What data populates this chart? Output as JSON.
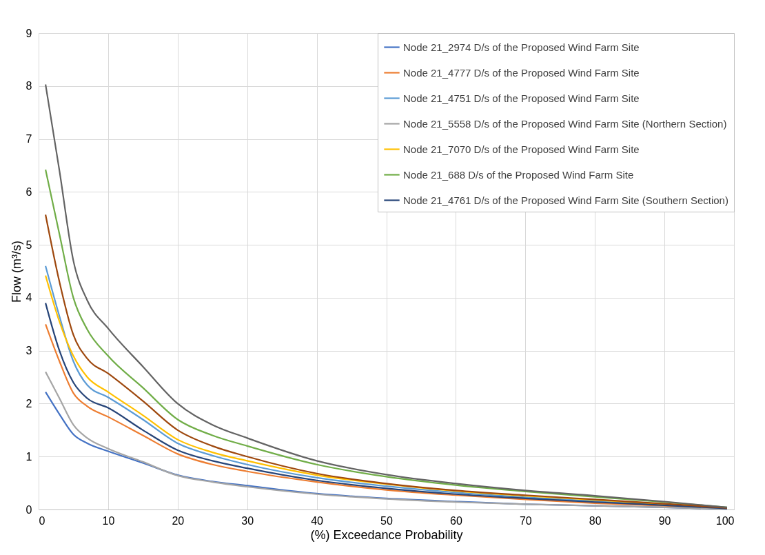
{
  "chart_data": {
    "type": "line",
    "xlabel": "(%) Exceedance Probability",
    "ylabel": "Flow (m³/s)",
    "x": [
      1,
      3,
      5,
      7,
      10,
      15,
      20,
      25,
      30,
      40,
      50,
      60,
      70,
      80,
      90,
      99
    ],
    "xlim": [
      0,
      100
    ],
    "xticks": [
      0,
      10,
      20,
      30,
      40,
      50,
      60,
      70,
      80,
      90,
      100
    ],
    "ylim": [
      0,
      9
    ],
    "yticks": [
      0,
      1,
      2,
      3,
      4,
      5,
      6,
      7,
      8,
      9
    ],
    "grid": true,
    "legend": "top right",
    "marker": "none",
    "line_style": "solid",
    "series": [
      {
        "name": "Node 21_2974 D/s of the Proposed Wind Farm Site",
        "color": "#4472c4",
        "values": [
          2.22,
          1.8,
          1.42,
          1.25,
          1.1,
          0.88,
          0.65,
          0.53,
          0.45,
          0.3,
          0.21,
          0.15,
          0.1,
          0.07,
          0.04,
          0.01
        ]
      },
      {
        "name": "Node 21_4777 D/s of the Proposed Wind Farm Site",
        "color": "#ed7d31",
        "values": [
          3.5,
          2.8,
          2.2,
          1.95,
          1.75,
          1.4,
          1.05,
          0.85,
          0.72,
          0.52,
          0.37,
          0.27,
          0.19,
          0.12,
          0.07,
          0.02
        ]
      },
      {
        "name": "Node 21_4751 D/s of the Proposed Wind Farm Site",
        "color": "#5b9bd5",
        "values": [
          4.6,
          3.65,
          2.8,
          2.35,
          2.12,
          1.7,
          1.25,
          1.02,
          0.85,
          0.6,
          0.44,
          0.32,
          0.23,
          0.16,
          0.09,
          0.03
        ]
      },
      {
        "name": "Node 21_5558 D/s of the Proposed Wind Farm Site (Northern Section)",
        "color": "#a5a5a5",
        "values": [
          2.6,
          2.1,
          1.6,
          1.35,
          1.15,
          0.9,
          0.64,
          0.52,
          0.43,
          0.29,
          0.2,
          0.14,
          0.1,
          0.07,
          0.04,
          0.01
        ]
      },
      {
        "name": "Node 21_7070 D/s of the Proposed Wind Farm Site",
        "color": "#ffc000",
        "values": [
          4.42,
          3.55,
          2.9,
          2.5,
          2.22,
          1.78,
          1.32,
          1.08,
          0.92,
          0.65,
          0.48,
          0.35,
          0.26,
          0.18,
          0.1,
          0.03
        ]
      },
      {
        "name": "Node 21_688 D/s of the Proposed Wind Farm Site",
        "color": "#70ad47",
        "values": [
          6.42,
          5.2,
          4.0,
          3.4,
          2.9,
          2.3,
          1.7,
          1.4,
          1.2,
          0.85,
          0.62,
          0.46,
          0.34,
          0.24,
          0.14,
          0.04
        ]
      },
      {
        "name": "Node 21_4761 D/s of the Proposed Wind Farm Site (Southern Section)",
        "color": "#264478",
        "values": [
          3.9,
          3.0,
          2.4,
          2.1,
          1.92,
          1.5,
          1.12,
          0.92,
          0.78,
          0.55,
          0.4,
          0.29,
          0.21,
          0.14,
          0.08,
          0.02
        ]
      },
      {
        "color": "#9e480e",
        "values": [
          5.57,
          4.3,
          3.3,
          2.85,
          2.57,
          2.05,
          1.5,
          1.2,
          1.0,
          0.68,
          0.49,
          0.36,
          0.27,
          0.19,
          0.11,
          0.03
        ]
      },
      {
        "color": "#636363",
        "values": [
          8.03,
          6.4,
          4.7,
          3.95,
          3.42,
          2.7,
          2.0,
          1.6,
          1.35,
          0.92,
          0.66,
          0.49,
          0.36,
          0.26,
          0.15,
          0.04
        ]
      }
    ]
  }
}
